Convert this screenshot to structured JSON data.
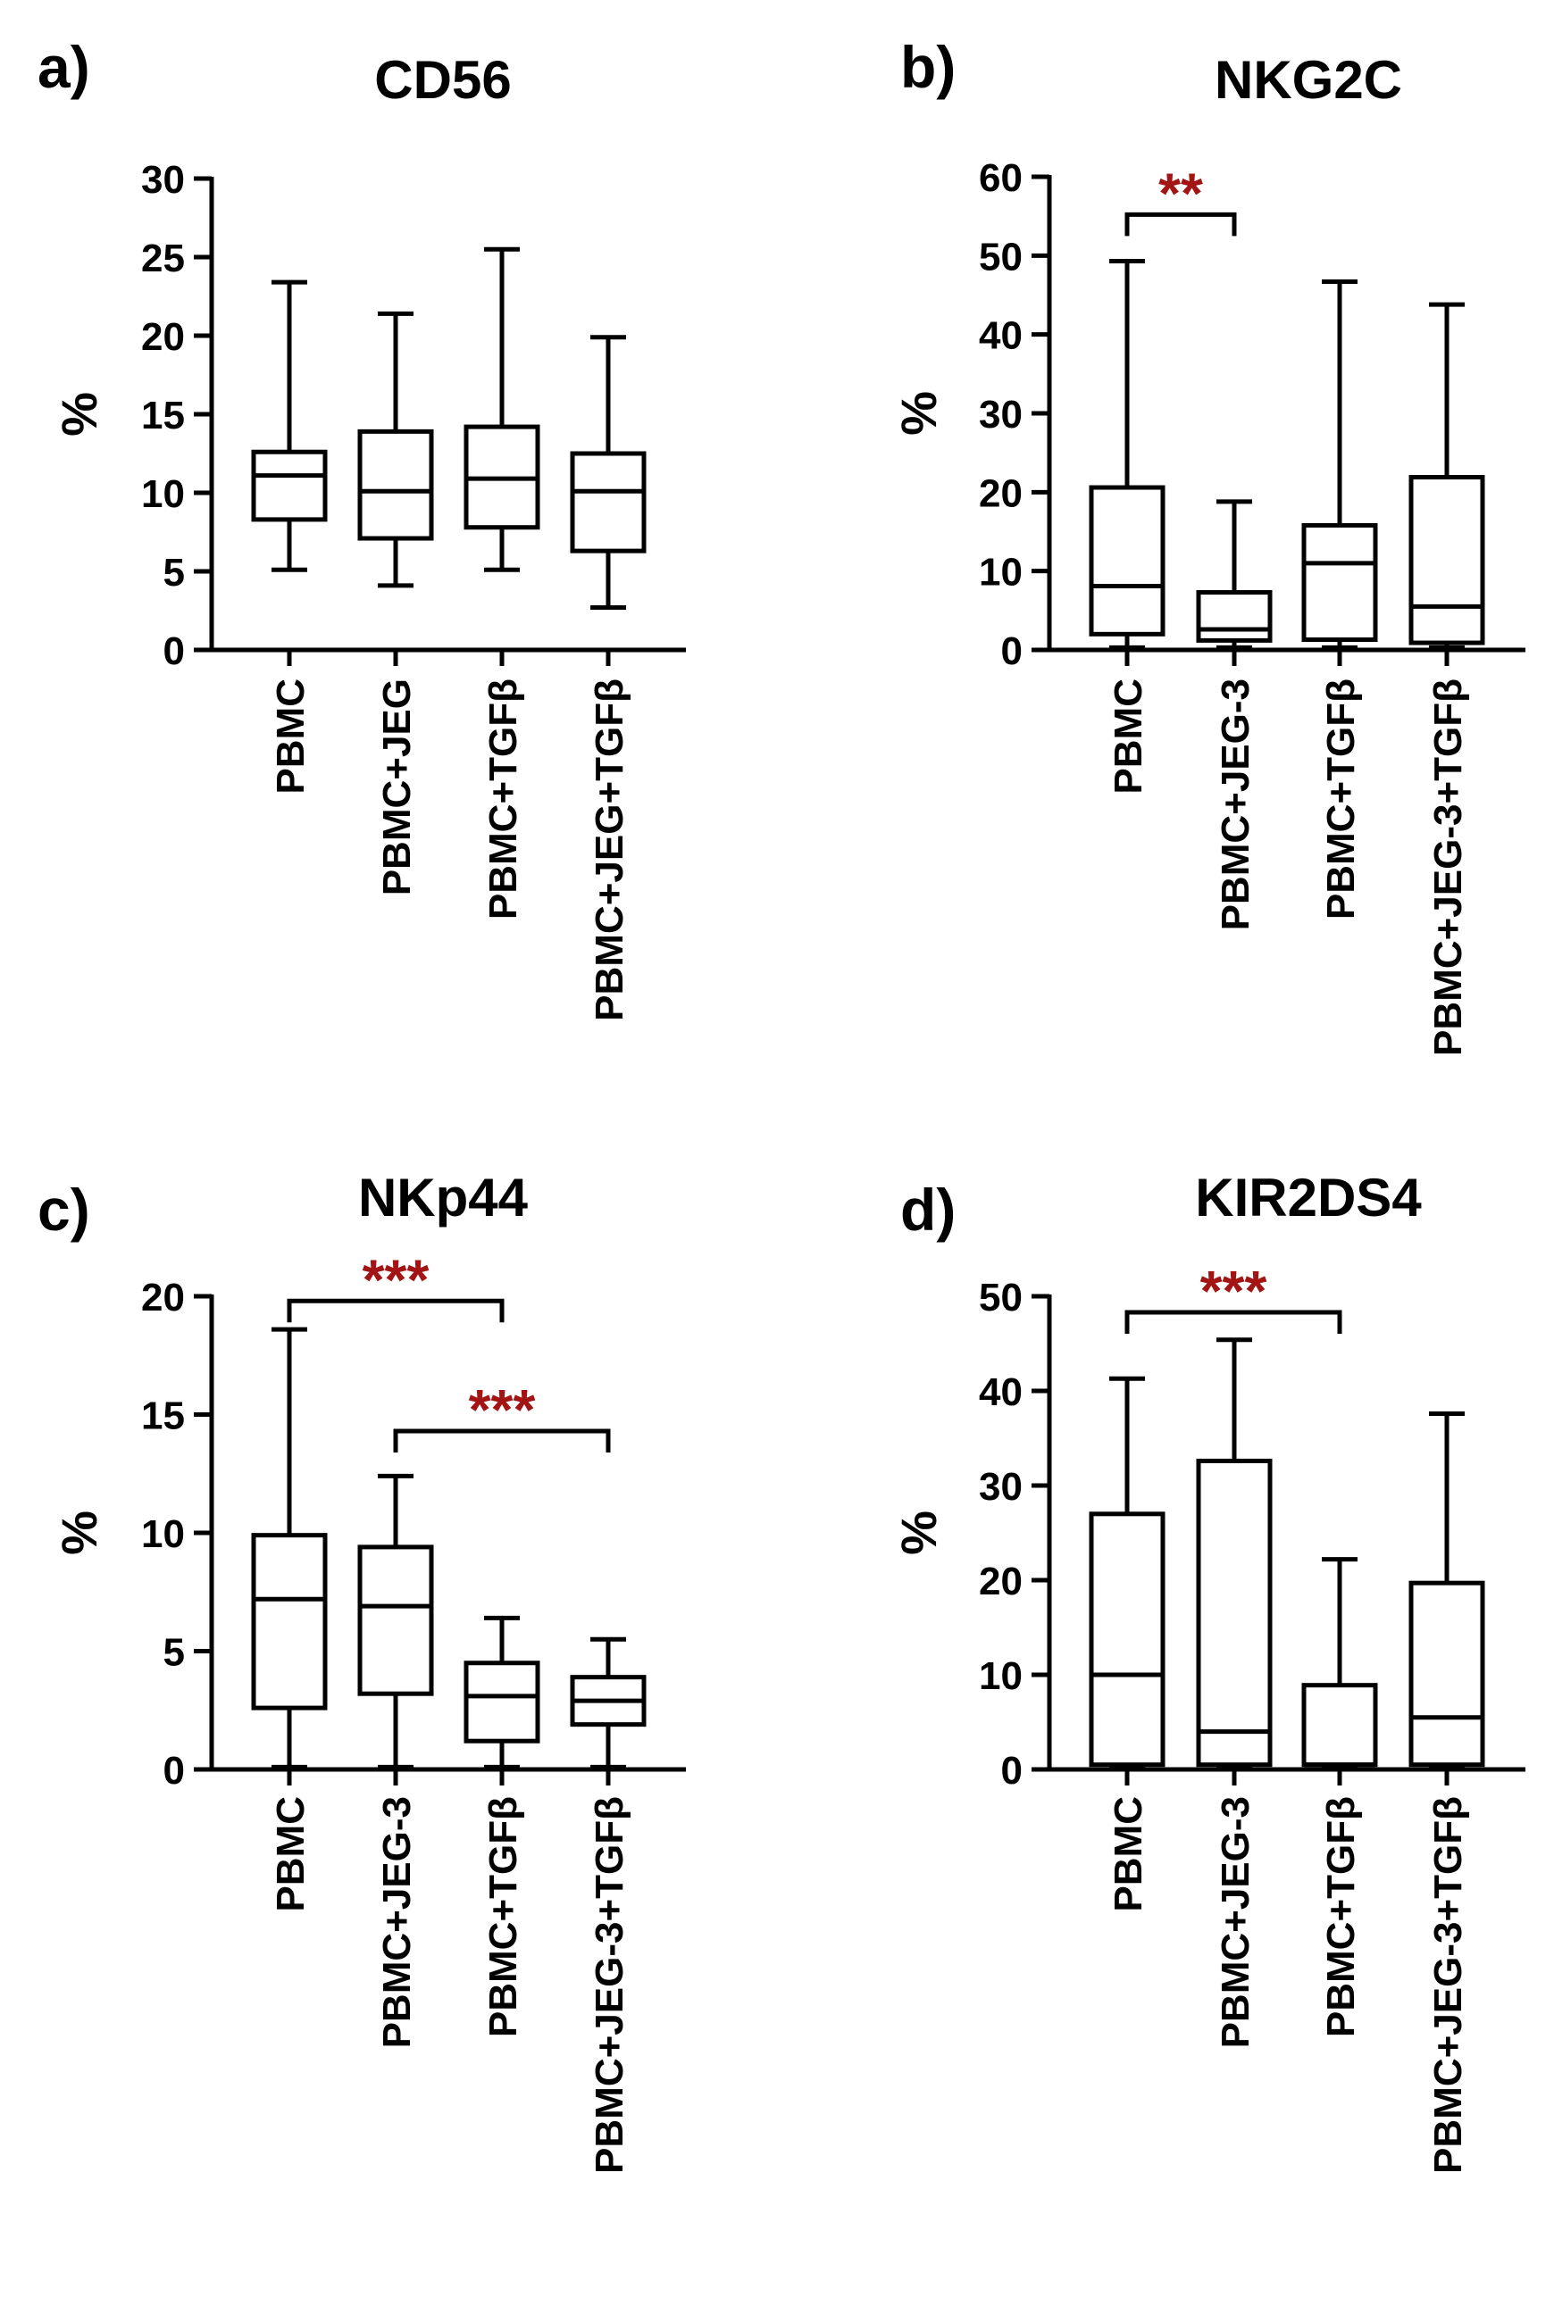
{
  "figure": {
    "star_color": "#a31515",
    "ink_color": "#000000"
  },
  "chart_data": [
    {
      "panel": "a)",
      "type": "box",
      "title": "CD56",
      "ylabel": "%",
      "ylim": [
        0,
        30
      ],
      "yticks": [
        0,
        5,
        10,
        15,
        20,
        25,
        30
      ],
      "categories": [
        "PBMC",
        "PBMC+JEG",
        "PBMC+TGFβ",
        "PBMC+JEG+TGFβ"
      ],
      "boxes": [
        {
          "min": 5.1,
          "q1": 8.3,
          "median": 11.1,
          "q3": 12.6,
          "max": 23.4
        },
        {
          "min": 4.1,
          "q1": 7.1,
          "median": 10.1,
          "q3": 13.9,
          "max": 21.4
        },
        {
          "min": 5.1,
          "q1": 7.8,
          "median": 10.9,
          "q3": 14.2,
          "max": 25.5
        },
        {
          "min": 2.7,
          "q1": 6.3,
          "median": 10.1,
          "q3": 12.5,
          "max": 19.9
        }
      ],
      "significance": []
    },
    {
      "panel": "b)",
      "type": "box",
      "title": "NKG2C",
      "ylabel": "%",
      "ylim": [
        0,
        60
      ],
      "yticks": [
        0,
        10,
        20,
        30,
        40,
        50,
        60
      ],
      "categories": [
        "PBMC",
        "PBMC+JEG-3",
        "PBMC+TGFβ",
        "PBMC+JEG-3+TGFβ"
      ],
      "boxes": [
        {
          "min": 0.3,
          "q1": 2.0,
          "median": 8.1,
          "q3": 20.6,
          "max": 49.3
        },
        {
          "min": 0.3,
          "q1": 1.2,
          "median": 2.6,
          "q3": 7.3,
          "max": 18.8
        },
        {
          "min": 0.3,
          "q1": 1.3,
          "median": 11.0,
          "q3": 15.8,
          "max": 46.7
        },
        {
          "min": 0.3,
          "q1": 0.9,
          "median": 5.5,
          "q3": 21.9,
          "max": 43.8
        }
      ],
      "significance": [
        {
          "from": 0,
          "to": 1,
          "y": 55.2,
          "label": "**"
        }
      ]
    },
    {
      "panel": "c)",
      "type": "box",
      "title": "NKp44",
      "ylabel": "%",
      "ylim": [
        0,
        20
      ],
      "yticks": [
        0,
        5,
        10,
        15,
        20
      ],
      "categories": [
        "PBMC",
        "PBMC+JEG-3",
        "PBMC+TGFβ",
        "PBMC+JEG-3+TGFβ"
      ],
      "boxes": [
        {
          "min": 0.1,
          "q1": 2.6,
          "median": 7.2,
          "q3": 9.9,
          "max": 18.6
        },
        {
          "min": 0.1,
          "q1": 3.2,
          "median": 6.9,
          "q3": 9.4,
          "max": 12.4
        },
        {
          "min": 0.1,
          "q1": 1.2,
          "median": 3.1,
          "q3": 4.5,
          "max": 6.4
        },
        {
          "min": 0.1,
          "q1": 1.9,
          "median": 2.9,
          "q3": 3.9,
          "max": 5.5
        }
      ],
      "significance": [
        {
          "from": 0,
          "to": 2,
          "y": 19.8,
          "label": "***"
        },
        {
          "from": 1,
          "to": 3,
          "y": 14.3,
          "label": "***"
        }
      ]
    },
    {
      "panel": "d)",
      "type": "box",
      "title": "KIR2DS4",
      "ylabel": "%",
      "ylim": [
        0,
        50
      ],
      "yticks": [
        0,
        10,
        20,
        30,
        40,
        50
      ],
      "categories": [
        "PBMC",
        "PBMC+JEG-3",
        "PBMC+TGFβ",
        "PBMC+JEG-3+TGFβ"
      ],
      "boxes": [
        {
          "min": 0.3,
          "q1": 0.5,
          "median": 10.0,
          "q3": 27.0,
          "max": 41.3
        },
        {
          "min": 0.3,
          "q1": 0.5,
          "median": 4.0,
          "q3": 32.6,
          "max": 45.4
        },
        {
          "min": 0.3,
          "q1": 0.5,
          "median": 0.5,
          "q3": 8.9,
          "max": 22.2
        },
        {
          "min": 0.3,
          "q1": 0.5,
          "median": 5.5,
          "q3": 19.7,
          "max": 37.6
        }
      ],
      "significance": [
        {
          "from": 0,
          "to": 2,
          "y": 48.3,
          "label": "***"
        }
      ]
    }
  ]
}
